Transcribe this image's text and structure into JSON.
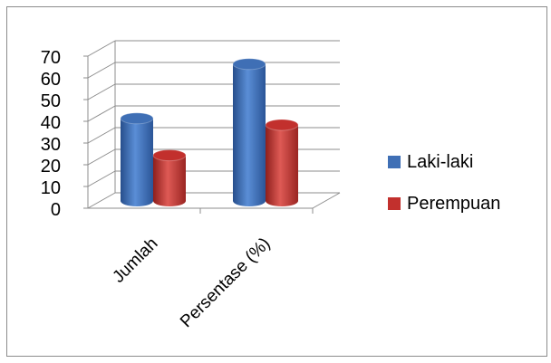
{
  "chart_data": {
    "type": "bar",
    "title": "",
    "xlabel": "",
    "ylabel": "",
    "categories": [
      "Jumlah",
      "Persentase (%)"
    ],
    "series": [
      {
        "name": "Laki-laki",
        "values": [
          38,
          63
        ],
        "color": "#3f6fb5"
      },
      {
        "name": "Perempuan",
        "values": [
          21,
          35
        ],
        "color": "#c2302d"
      }
    ],
    "yticks": [
      "0",
      "10",
      "20",
      "30",
      "40",
      "50",
      "60",
      "70"
    ],
    "ylim": [
      0,
      70
    ],
    "grid": true,
    "legend_position": "right",
    "style": "3d-cylinder"
  }
}
